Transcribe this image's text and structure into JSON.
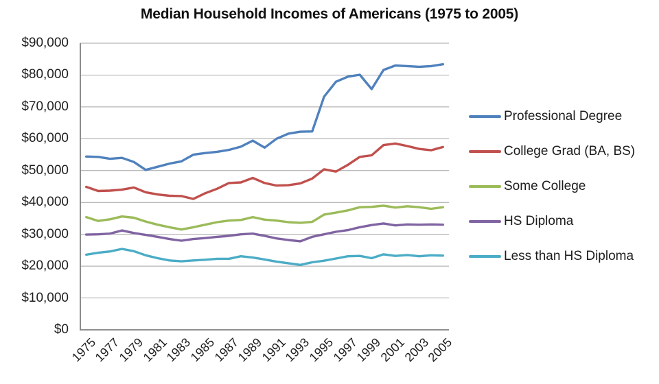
{
  "chart_data": {
    "type": "line",
    "title": "Median Household Incomes of Americans (1975 to 2005)",
    "xlabel": "",
    "ylabel": "",
    "ylim": [
      0,
      90000
    ],
    "y_tick_step": 10000,
    "grid": true,
    "legend_position": "right",
    "x": [
      1975,
      1976,
      1977,
      1978,
      1979,
      1980,
      1981,
      1982,
      1983,
      1984,
      1985,
      1986,
      1987,
      1988,
      1989,
      1990,
      1991,
      1992,
      1993,
      1994,
      1995,
      1996,
      1997,
      1998,
      1999,
      2000,
      2001,
      2002,
      2003,
      2004,
      2005
    ],
    "x_axis": {
      "tick_labels": [
        "1975",
        "1977",
        "1979",
        "1981",
        "1983",
        "1985",
        "1987",
        "1989",
        "1991",
        "1993",
        "1995",
        "1997",
        "1999",
        "2001",
        "2003",
        "2005"
      ],
      "label_every_n_years": 2
    },
    "y_axis": {
      "tick_labels": [
        "$0",
        "$10,000",
        "$20,000",
        "$30,000",
        "$40,000",
        "$50,000",
        "$60,000",
        "$70,000",
        "$80,000",
        "$90,000"
      ]
    },
    "series": [
      {
        "name": "Professional Degree",
        "color": "#4F81BD",
        "values": [
          54400,
          54300,
          53700,
          54000,
          52700,
          50200,
          51200,
          52200,
          52900,
          55000,
          55500,
          55900,
          56500,
          57500,
          59400,
          57200,
          60000,
          61600,
          62200,
          62300,
          73200,
          77900,
          79500,
          80100,
          75600,
          81600,
          83000,
          82800,
          82600,
          82800,
          83400
        ]
      },
      {
        "name": "College Grad (BA, BS)",
        "color": "#C0504D",
        "values": [
          44900,
          43600,
          43700,
          44000,
          44700,
          43200,
          42500,
          42100,
          42000,
          41100,
          42900,
          44300,
          46100,
          46300,
          47700,
          46100,
          45300,
          45400,
          46000,
          47500,
          50400,
          49700,
          51800,
          54300,
          54800,
          58000,
          58500,
          57700,
          56800,
          56400,
          57400
        ]
      },
      {
        "name": "Some College",
        "color": "#9BBB59",
        "values": [
          35400,
          34200,
          34700,
          35600,
          35200,
          34000,
          33000,
          32200,
          31500,
          32200,
          33000,
          33800,
          34300,
          34500,
          35400,
          34600,
          34300,
          33800,
          33600,
          33900,
          36200,
          36800,
          37500,
          38500,
          38600,
          39000,
          38400,
          38800,
          38500,
          38000,
          38500
        ]
      },
      {
        "name": "HS Diploma",
        "color": "#8064A2",
        "values": [
          29900,
          30000,
          30200,
          31200,
          30400,
          29800,
          29200,
          28500,
          28000,
          28500,
          28800,
          29200,
          29500,
          30000,
          30200,
          29500,
          28700,
          28200,
          27800,
          29200,
          30000,
          30800,
          31300,
          32200,
          32900,
          33400,
          32800,
          33100,
          33000,
          33100,
          33000
        ]
      },
      {
        "name": "Less than HS Diploma",
        "color": "#4BACC6",
        "values": [
          23600,
          24200,
          24600,
          25400,
          24700,
          23400,
          22500,
          21800,
          21500,
          21800,
          22000,
          22300,
          22300,
          23100,
          22700,
          22100,
          21400,
          20900,
          20400,
          21200,
          21700,
          22400,
          23100,
          23200,
          22500,
          23700,
          23200,
          23500,
          23100,
          23400,
          23300
        ]
      }
    ],
    "style": {
      "gridline_color": "#a3a3a3",
      "axis_color": "#7f7f7f",
      "text_color": "#1f1f1f",
      "line_width": 3.4
    }
  }
}
